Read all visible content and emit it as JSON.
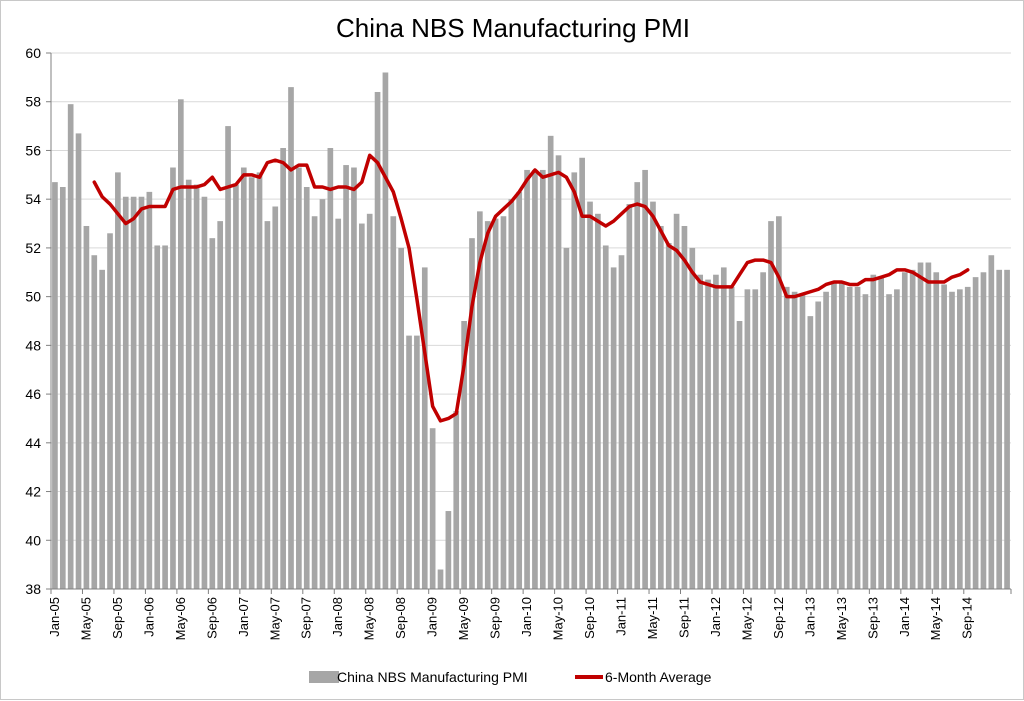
{
  "chart_data": {
    "type": "bar",
    "title": "China NBS Manufacturing PMI",
    "xlabel": "",
    "ylabel": "",
    "ylim": [
      38,
      60
    ],
    "yticks": [
      38,
      40,
      42,
      44,
      46,
      48,
      50,
      52,
      54,
      56,
      58,
      60
    ],
    "grid": true,
    "legend_position": "bottom",
    "tick_labels": [
      "Jan-05",
      "May-05",
      "Sep-05",
      "Jan-06",
      "May-06",
      "Sep-06",
      "Jan-07",
      "May-07",
      "Sep-07",
      "Jan-08",
      "May-08",
      "Sep-08",
      "Jan-09",
      "May-09",
      "Sep-09",
      "Jan-10",
      "May-10",
      "Sep-10",
      "Jan-11",
      "May-11",
      "Sep-11",
      "Jan-12",
      "May-12",
      "Sep-12",
      "Jan-13",
      "May-13",
      "Sep-13",
      "Jan-14",
      "May-14",
      "Sep-14"
    ],
    "colors": {
      "bars": "#a6a6a6",
      "line": "#c00000",
      "grid": "#d9d9d9",
      "axis": "#808080"
    },
    "series": [
      {
        "name": "China NBS Manufacturing PMI",
        "type": "bar",
        "values": [
          54.7,
          54.5,
          57.9,
          56.7,
          52.9,
          51.7,
          51.1,
          52.6,
          55.1,
          54.1,
          54.1,
          54.1,
          54.3,
          52.1,
          52.1,
          55.3,
          58.1,
          54.8,
          54.6,
          54.1,
          52.4,
          53.1,
          57.0,
          54.6,
          55.3,
          54.9,
          55.1,
          53.1,
          53.7,
          56.1,
          58.6,
          55.3,
          54.5,
          53.3,
          54.0,
          56.1,
          53.2,
          55.4,
          55.3,
          53.0,
          53.4,
          58.4,
          59.2,
          53.3,
          52.0,
          48.4,
          48.4,
          51.2,
          44.6,
          38.8,
          41.2,
          45.3,
          49.0,
          52.4,
          53.5,
          53.1,
          53.2,
          53.3,
          54.0,
          54.3,
          55.2,
          55.2,
          55.2,
          56.6,
          55.8,
          52.0,
          55.1,
          55.7,
          53.9,
          53.4,
          52.1,
          51.2,
          51.7,
          53.8,
          54.7,
          55.2,
          53.9,
          52.9,
          52.2,
          53.4,
          52.9,
          52.0,
          50.9,
          50.7,
          50.9,
          51.2,
          50.4,
          49.0,
          50.3,
          50.3,
          51.0,
          53.1,
          53.3,
          50.4,
          50.2,
          50.1,
          49.2,
          49.8,
          50.2,
          50.6,
          50.6,
          50.4,
          50.4,
          50.1,
          50.9,
          50.8,
          50.1,
          50.3,
          51.0,
          51.1,
          51.4,
          51.4,
          51.0,
          50.5,
          50.2,
          50.3,
          50.4,
          50.8,
          51.0,
          51.7,
          51.1,
          51.1
        ]
      },
      {
        "name": "6-Month Average",
        "type": "line",
        "start_index": 5,
        "values": [
          54.7,
          54.1,
          53.8,
          53.4,
          53.0,
          53.2,
          53.6,
          53.7,
          53.7,
          53.7,
          54.4,
          54.5,
          54.5,
          54.5,
          54.6,
          54.9,
          54.4,
          54.5,
          54.6,
          55.0,
          55.0,
          54.9,
          55.5,
          55.6,
          55.5,
          55.2,
          55.4,
          55.4,
          54.5,
          54.5,
          54.4,
          54.5,
          54.5,
          54.4,
          54.7,
          55.8,
          55.5,
          54.9,
          54.3,
          53.2,
          52.0,
          49.9,
          47.7,
          45.5,
          44.9,
          45.0,
          45.2,
          47.2,
          49.6,
          51.4,
          52.6,
          53.3,
          53.6,
          53.9,
          54.3,
          54.8,
          55.2,
          54.9,
          55.0,
          55.1,
          54.9,
          54.3,
          53.3,
          53.3,
          53.1,
          52.9,
          53.1,
          53.4,
          53.7,
          53.8,
          53.7,
          53.3,
          52.7,
          52.1,
          51.9,
          51.5,
          51.0,
          50.6,
          50.5,
          50.4,
          50.4,
          50.4,
          50.9,
          51.4,
          51.5,
          51.5,
          51.4,
          50.8,
          50.0,
          50.0,
          50.1,
          50.2,
          50.3,
          50.5,
          50.6,
          50.6,
          50.5,
          50.5,
          50.7,
          50.7,
          50.8,
          50.9,
          51.1,
          51.1,
          51.0,
          50.8,
          50.6,
          50.6,
          50.6,
          50.8,
          50.9,
          51.1
        ]
      }
    ]
  }
}
